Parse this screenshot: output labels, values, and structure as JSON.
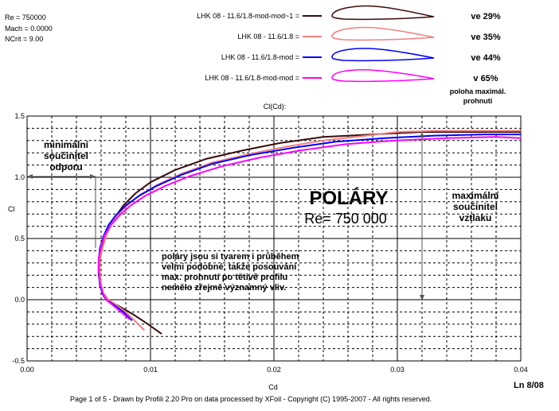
{
  "params": {
    "re": "Re = 750000",
    "mach": "Mach = 0.0000",
    "ncrit": "NCrit = 9.00"
  },
  "legend": [
    {
      "name": "LHK 08 - 11.6/1.8-mod-mod~1 =",
      "color": "#3b0b0b",
      "note": "ve 29%"
    },
    {
      "name": "LHK 08 - 11.6/1.8 =",
      "color": "#f08080",
      "note": "ve 35%"
    },
    {
      "name": "LHK 08 - 11.6/1.8-mod =",
      "color": "#0000ff",
      "note": "ve 44%"
    },
    {
      "name": "LHK 08 - 11.6/1.8-mod-mod =",
      "color": "#ff00ff",
      "note": "v  65%"
    }
  ],
  "legend_note": "poloha maximál.\nprohnutí",
  "chart_data": {
    "type": "line",
    "title": "Cl(Cd):",
    "xlabel": "Cd",
    "ylabel": "Cl",
    "xlim": [
      0,
      0.04
    ],
    "ylim": [
      -0.5,
      1.5
    ],
    "x_ticks": [
      "0.00",
      "0.01",
      "0.02",
      "0.03",
      "0.04"
    ],
    "y_ticks": [
      "-0.5",
      "0.0",
      "0.5",
      "1.0",
      "1.5"
    ],
    "grid": true,
    "series": [
      {
        "name": "LHK 08 - 11.6/1.8-mod-mod~1",
        "color": "#3b0b0b",
        "x": [
          0.0109,
          0.0098,
          0.0086,
          0.0074,
          0.0065,
          0.0062,
          0.006,
          0.0058,
          0.0058,
          0.0059,
          0.0062,
          0.0066,
          0.0071,
          0.0078,
          0.0088,
          0.01,
          0.012,
          0.0145,
          0.0175,
          0.0205,
          0.024,
          0.028,
          0.032,
          0.036,
          0.04
        ],
        "y": [
          -0.28,
          -0.2,
          -0.12,
          -0.05,
          -0.01,
          0.03,
          0.1,
          0.2,
          0.3,
          0.38,
          0.47,
          0.57,
          0.67,
          0.77,
          0.87,
          0.96,
          1.06,
          1.15,
          1.22,
          1.28,
          1.33,
          1.35,
          1.37,
          1.37,
          1.37
        ]
      },
      {
        "name": "LHK 08 - 11.6/1.8",
        "color": "#f08080",
        "x": [
          0.0095,
          0.0088,
          0.008,
          0.0072,
          0.0066,
          0.0062,
          0.006,
          0.0059,
          0.0059,
          0.0061,
          0.0064,
          0.0068,
          0.0074,
          0.0082,
          0.0092,
          0.0106,
          0.0125,
          0.015,
          0.018,
          0.021,
          0.024,
          0.0275,
          0.03,
          0.033,
          0.04
        ],
        "y": [
          -0.25,
          -0.18,
          -0.1,
          -0.04,
          0.0,
          0.05,
          0.12,
          0.22,
          0.32,
          0.42,
          0.52,
          0.62,
          0.7,
          0.78,
          0.86,
          0.94,
          1.03,
          1.12,
          1.19,
          1.25,
          1.3,
          1.34,
          1.37,
          1.38,
          1.38
        ]
      },
      {
        "name": "LHK 08 - 11.6/1.8-mod",
        "color": "#0000ff",
        "x": [
          0.0085,
          0.0078,
          0.007,
          0.0064,
          0.0061,
          0.0059,
          0.0058,
          0.0058,
          0.0059,
          0.0062,
          0.0066,
          0.0072,
          0.008,
          0.0091,
          0.0105,
          0.0125,
          0.015,
          0.018,
          0.0215,
          0.025,
          0.029,
          0.033,
          0.037,
          0.04
        ],
        "y": [
          -0.17,
          -0.1,
          -0.04,
          0.0,
          0.05,
          0.12,
          0.22,
          0.32,
          0.42,
          0.52,
          0.61,
          0.69,
          0.77,
          0.85,
          0.93,
          1.02,
          1.11,
          1.18,
          1.24,
          1.29,
          1.32,
          1.34,
          1.35,
          1.35
        ]
      },
      {
        "name": "LHK 08 - 11.6/1.8-mod-mod",
        "color": "#ff00ff",
        "x": [
          0.0083,
          0.0076,
          0.0069,
          0.0064,
          0.0061,
          0.0059,
          0.0058,
          0.0058,
          0.006,
          0.0063,
          0.0068,
          0.0075,
          0.0084,
          0.0096,
          0.0112,
          0.0132,
          0.0158,
          0.0188,
          0.0222,
          0.0258,
          0.0298,
          0.034,
          0.038,
          0.04
        ],
        "y": [
          -0.16,
          -0.1,
          -0.04,
          0.0,
          0.06,
          0.14,
          0.24,
          0.34,
          0.44,
          0.53,
          0.61,
          0.69,
          0.77,
          0.85,
          0.93,
          1.01,
          1.09,
          1.16,
          1.22,
          1.27,
          1.3,
          1.32,
          1.33,
          1.32
        ]
      }
    ]
  },
  "annotations": {
    "min_drag": "minimální\nsoučinitel\nodporu",
    "polar_title": "POLÁRY",
    "polar_re": "Re= 750 000",
    "max_lift": "maximální\nsoučinitel\nvztlaku",
    "comment": "poláry jsou si tvarem i průběhem\nvelmi podobné, takže posouvání\nmax. prohnutí po tětivě profilu\nnemělo zřejmě významný vliv."
  },
  "footer": "Page 1 of 5   -   Drawn by Profili 2.20 Pro on data processed by  XFoil - Copyright (C) 1995-2007 - All rights reserved.",
  "corner": "Ln 8/08"
}
